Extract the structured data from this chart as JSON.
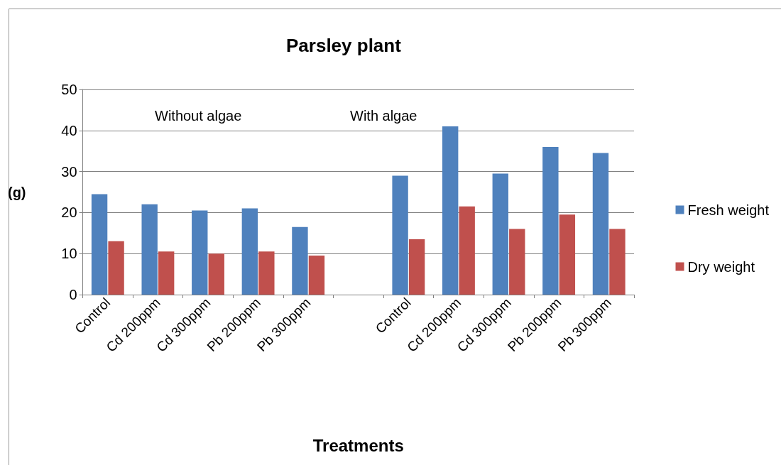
{
  "chart_data": {
    "type": "bar",
    "title": "Parsley plant",
    "xlabel": "Treatments",
    "ylabel": "(g)",
    "categories": [
      "Control",
      "Cd 200ppm",
      "Cd 300ppm",
      "Pb 200ppm",
      "Pb 300ppm",
      null,
      "Control",
      "Cd 200ppm",
      "Cd 300ppm",
      "Pb 200ppm",
      "Pb 300ppm"
    ],
    "series": [
      {
        "name": "Fresh weight",
        "color": "#4f81bd",
        "values": [
          24.5,
          22,
          20.5,
          21,
          16.5,
          null,
          29,
          41,
          29.5,
          36,
          34.5
        ]
      },
      {
        "name": "Dry weight",
        "color": "#c0504d",
        "values": [
          13,
          10.5,
          10,
          10.5,
          9.5,
          null,
          13.5,
          21.5,
          16,
          19.5,
          16
        ]
      }
    ],
    "ylim": [
      0,
      50
    ],
    "yticks": [
      0,
      10,
      20,
      30,
      40,
      50
    ],
    "grid": "y",
    "legend": "right",
    "annotations": [
      "Without algae",
      "With algae"
    ]
  }
}
